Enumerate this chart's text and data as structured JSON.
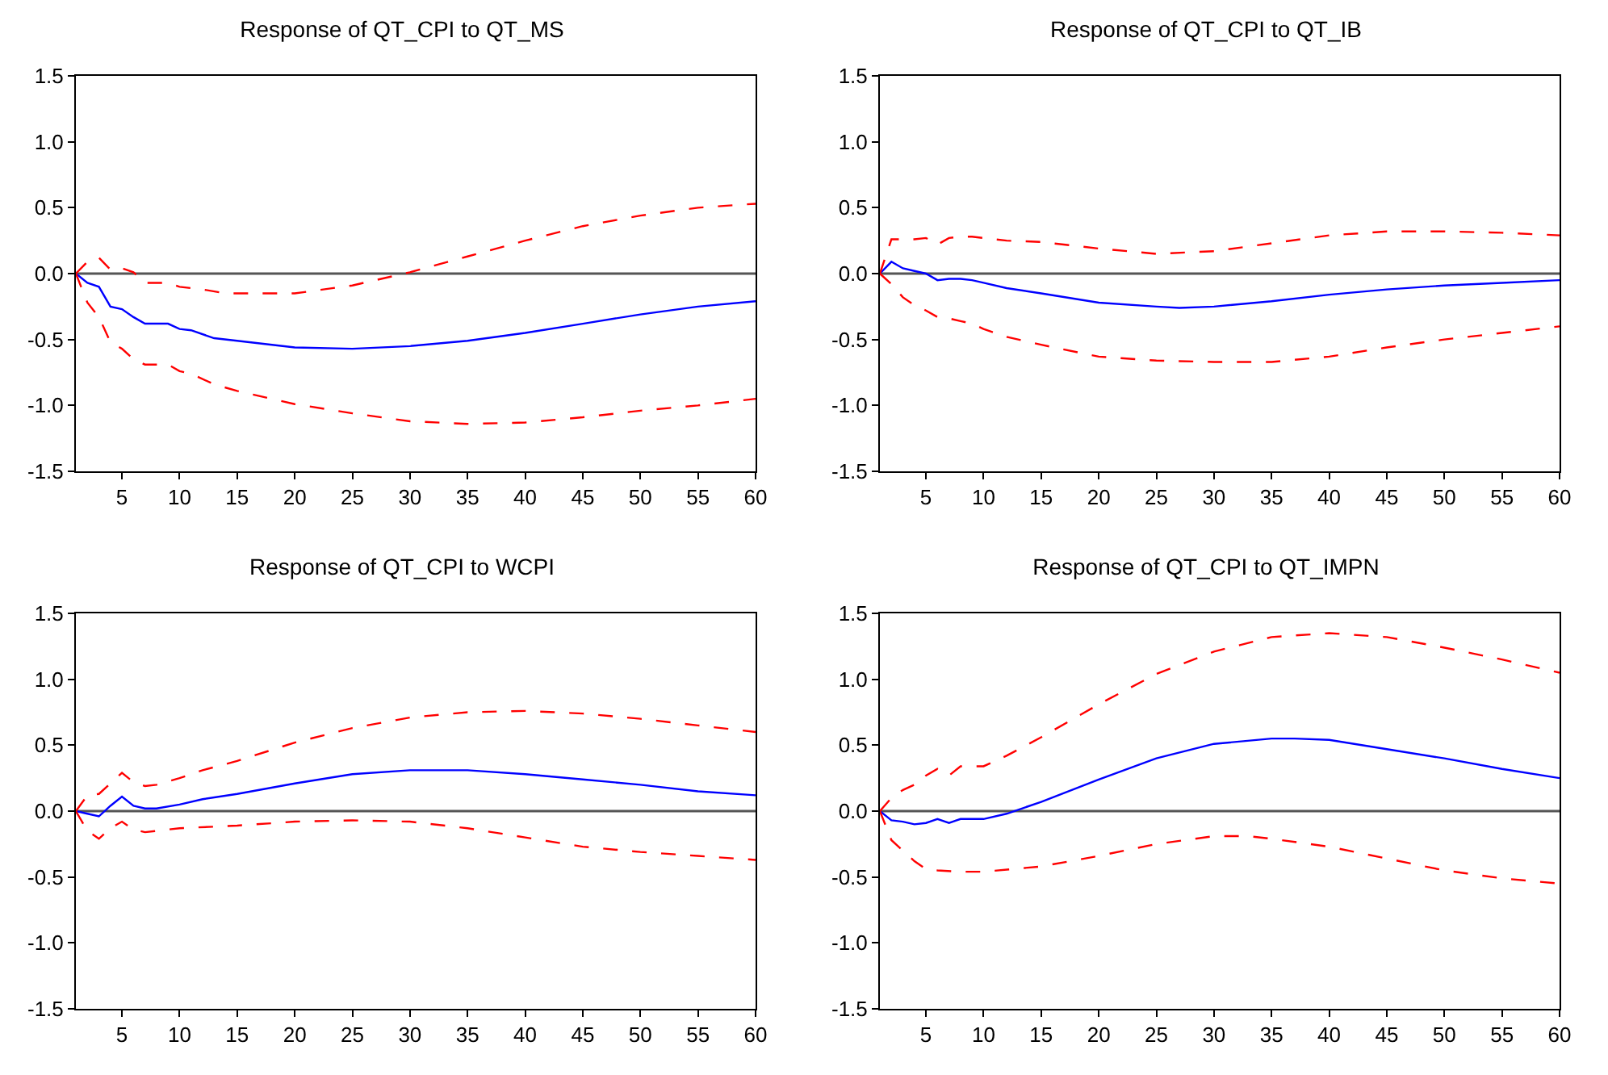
{
  "chart_data": [
    {
      "type": "line",
      "title": "Response of QT_CPI to QT_MS",
      "xlim": [
        1,
        60
      ],
      "xticks": [
        5,
        10,
        15,
        20,
        25,
        30,
        35,
        40,
        45,
        50,
        55,
        60
      ],
      "ylim": [
        -1.5,
        1.5
      ],
      "yticks": [
        {
          "value": 1.5,
          "label": "1.5"
        },
        {
          "value": 1,
          "label": "1.0"
        },
        {
          "value": 0.5,
          "label": "0.5"
        },
        {
          "value": 0,
          "label": "0.0"
        },
        {
          "value": -0.5,
          "label": "-0.5"
        },
        {
          "value": -1,
          "label": "-1.0"
        },
        {
          "value": -1.5,
          "label": "-1.5"
        }
      ],
      "ref_lines": [
        {
          "axis": "y",
          "value": 0,
          "color": "#555555"
        }
      ],
      "series": [
        {
          "color": "#0000ff",
          "line_style": "solid",
          "x": [
            1,
            2,
            3,
            4,
            5,
            6,
            7,
            8,
            9,
            10,
            11,
            13,
            15,
            20,
            25,
            30,
            35,
            40,
            45,
            50,
            55,
            60
          ],
          "values": [
            0,
            -0.07,
            -0.1,
            -0.25,
            -0.27,
            -0.33,
            -0.38,
            -0.38,
            -0.38,
            -0.42,
            -0.43,
            -0.49,
            -0.51,
            -0.56,
            -0.57,
            -0.55,
            -0.51,
            -0.45,
            -0.38,
            -0.31,
            -0.25,
            -0.21
          ]
        },
        {
          "color": "#ff0000",
          "line_style": "dashed",
          "x": [
            1,
            2,
            3,
            4,
            5,
            6,
            7,
            8,
            9,
            10,
            12,
            14,
            20,
            25,
            30,
            35,
            40,
            45,
            50,
            55,
            60
          ],
          "values": [
            0,
            0.09,
            0.12,
            0.03,
            0.04,
            0.01,
            -0.07,
            -0.07,
            -0.07,
            -0.1,
            -0.12,
            -0.15,
            -0.15,
            -0.09,
            0.01,
            0.13,
            0.25,
            0.36,
            0.44,
            0.5,
            0.53
          ]
        },
        {
          "color": "#ff0000",
          "line_style": "dashed",
          "x": [
            1,
            2,
            3,
            4,
            5,
            6,
            7,
            8,
            9,
            10,
            11,
            13,
            15,
            20,
            25,
            30,
            35,
            40,
            45,
            50,
            55,
            60
          ],
          "values": [
            0,
            -0.22,
            -0.33,
            -0.52,
            -0.57,
            -0.65,
            -0.69,
            -0.69,
            -0.69,
            -0.74,
            -0.76,
            -0.84,
            -0.89,
            -0.99,
            -1.06,
            -1.12,
            -1.14,
            -1.13,
            -1.09,
            -1.04,
            -1.0,
            -0.95
          ]
        }
      ]
    },
    {
      "type": "line",
      "title": "Response of QT_CPI to QT_IB",
      "xlim": [
        1,
        60
      ],
      "xticks": [
        5,
        10,
        15,
        20,
        25,
        30,
        35,
        40,
        45,
        50,
        55,
        60
      ],
      "ylim": [
        -1.5,
        1.5
      ],
      "yticks": [
        {
          "value": 1.5,
          "label": "1.5"
        },
        {
          "value": 1,
          "label": "1.0"
        },
        {
          "value": 0.5,
          "label": "0.5"
        },
        {
          "value": 0,
          "label": "0.0"
        },
        {
          "value": -0.5,
          "label": "-0.5"
        },
        {
          "value": -1,
          "label": "-1.0"
        },
        {
          "value": -1.5,
          "label": "-1.5"
        }
      ],
      "ref_lines": [
        {
          "axis": "y",
          "value": 0,
          "color": "#555555"
        }
      ],
      "series": [
        {
          "color": "#0000ff",
          "line_style": "solid",
          "x": [
            1,
            2,
            3,
            4,
            5,
            6,
            7,
            8,
            9,
            10,
            12,
            15,
            20,
            25,
            27,
            30,
            35,
            40,
            45,
            50,
            55,
            60
          ],
          "values": [
            0,
            0.09,
            0.04,
            0.02,
            0.0,
            -0.05,
            -0.04,
            -0.04,
            -0.05,
            -0.07,
            -0.11,
            -0.15,
            -0.22,
            -0.25,
            -0.26,
            -0.25,
            -0.21,
            -0.16,
            -0.12,
            -0.09,
            -0.07,
            -0.05
          ]
        },
        {
          "color": "#ff0000",
          "line_style": "dashed",
          "x": [
            1,
            2,
            3,
            4,
            5,
            6,
            7,
            8,
            9,
            10,
            12,
            15,
            20,
            25,
            30,
            35,
            40,
            45,
            50,
            55,
            60
          ],
          "values": [
            0,
            0.26,
            0.26,
            0.26,
            0.27,
            0.22,
            0.27,
            0.28,
            0.28,
            0.27,
            0.25,
            0.24,
            0.19,
            0.15,
            0.17,
            0.23,
            0.29,
            0.32,
            0.32,
            0.31,
            0.29
          ]
        },
        {
          "color": "#ff0000",
          "line_style": "dashed",
          "x": [
            1,
            2,
            3,
            4,
            5,
            6,
            7,
            8,
            9,
            10,
            12,
            15,
            20,
            25,
            30,
            35,
            40,
            45,
            50,
            55,
            60
          ],
          "values": [
            0,
            -0.08,
            -0.18,
            -0.24,
            -0.28,
            -0.33,
            -0.34,
            -0.36,
            -0.38,
            -0.42,
            -0.48,
            -0.54,
            -0.63,
            -0.66,
            -0.67,
            -0.67,
            -0.63,
            -0.56,
            -0.5,
            -0.45,
            -0.4
          ]
        }
      ]
    },
    {
      "type": "line",
      "title": "Response of QT_CPI to WCPI",
      "xlim": [
        1,
        60
      ],
      "xticks": [
        5,
        10,
        15,
        20,
        25,
        30,
        35,
        40,
        45,
        50,
        55,
        60
      ],
      "ylim": [
        -1.5,
        1.5
      ],
      "yticks": [
        {
          "value": 1.5,
          "label": "1.5"
        },
        {
          "value": 1,
          "label": "1.0"
        },
        {
          "value": 0.5,
          "label": "0.5"
        },
        {
          "value": 0,
          "label": "0.0"
        },
        {
          "value": -0.5,
          "label": "-0.5"
        },
        {
          "value": -1,
          "label": "-1.0"
        },
        {
          "value": -1.5,
          "label": "-1.5"
        }
      ],
      "ref_lines": [
        {
          "axis": "y",
          "value": 0,
          "color": "#555555"
        }
      ],
      "series": [
        {
          "color": "#0000ff",
          "line_style": "solid",
          "x": [
            1,
            2,
            3,
            4,
            5,
            6,
            7,
            8,
            10,
            12,
            15,
            20,
            25,
            30,
            33,
            35,
            40,
            45,
            50,
            55,
            60
          ],
          "values": [
            0,
            -0.02,
            -0.04,
            0.04,
            0.11,
            0.04,
            0.02,
            0.02,
            0.05,
            0.09,
            0.13,
            0.21,
            0.28,
            0.31,
            0.31,
            0.31,
            0.28,
            0.24,
            0.2,
            0.15,
            0.12
          ]
        },
        {
          "color": "#ff0000",
          "line_style": "dashed",
          "x": [
            1,
            2,
            3,
            4,
            5,
            6,
            7,
            8,
            10,
            12,
            15,
            20,
            25,
            30,
            35,
            40,
            45,
            50,
            55,
            60
          ],
          "values": [
            0,
            0.12,
            0.13,
            0.21,
            0.29,
            0.22,
            0.19,
            0.2,
            0.25,
            0.31,
            0.38,
            0.52,
            0.63,
            0.71,
            0.75,
            0.76,
            0.74,
            0.7,
            0.65,
            0.6
          ]
        },
        {
          "color": "#ff0000",
          "line_style": "dashed",
          "x": [
            1,
            2,
            3,
            4,
            5,
            6,
            7,
            8,
            10,
            15,
            20,
            25,
            30,
            35,
            40,
            45,
            50,
            55,
            60
          ],
          "values": [
            0,
            -0.15,
            -0.21,
            -0.13,
            -0.08,
            -0.14,
            -0.16,
            -0.15,
            -0.13,
            -0.11,
            -0.08,
            -0.07,
            -0.08,
            -0.13,
            -0.2,
            -0.27,
            -0.31,
            -0.34,
            -0.37
          ]
        }
      ]
    },
    {
      "type": "line",
      "title": "Response of QT_CPI to QT_IMPN",
      "xlim": [
        1,
        60
      ],
      "xticks": [
        5,
        10,
        15,
        20,
        25,
        30,
        35,
        40,
        45,
        50,
        55,
        60
      ],
      "ylim": [
        -1.5,
        1.5
      ],
      "yticks": [
        {
          "value": 1.5,
          "label": "1.5"
        },
        {
          "value": 1,
          "label": "1.0"
        },
        {
          "value": 0.5,
          "label": "0.5"
        },
        {
          "value": 0,
          "label": "0.0"
        },
        {
          "value": -0.5,
          "label": "-0.5"
        },
        {
          "value": -1,
          "label": "-1.0"
        },
        {
          "value": -1.5,
          "label": "-1.5"
        }
      ],
      "ref_lines": [
        {
          "axis": "y",
          "value": 0,
          "color": "#555555"
        }
      ],
      "series": [
        {
          "color": "#0000ff",
          "line_style": "solid",
          "x": [
            1,
            2,
            3,
            4,
            5,
            6,
            7,
            8,
            10,
            12,
            15,
            20,
            25,
            30,
            35,
            37,
            40,
            45,
            50,
            55,
            60
          ],
          "values": [
            0,
            -0.07,
            -0.08,
            -0.1,
            -0.09,
            -0.06,
            -0.09,
            -0.06,
            -0.06,
            -0.02,
            0.07,
            0.24,
            0.4,
            0.51,
            0.55,
            0.55,
            0.54,
            0.47,
            0.4,
            0.32,
            0.25
          ]
        },
        {
          "color": "#ff0000",
          "line_style": "dashed",
          "x": [
            1,
            2,
            3,
            4,
            5,
            6,
            7,
            8,
            10,
            12,
            15,
            20,
            25,
            30,
            35,
            40,
            45,
            50,
            55,
            60
          ],
          "values": [
            0,
            0.1,
            0.16,
            0.2,
            0.27,
            0.32,
            0.27,
            0.34,
            0.34,
            0.42,
            0.56,
            0.81,
            1.04,
            1.21,
            1.32,
            1.35,
            1.32,
            1.24,
            1.15,
            1.05
          ]
        },
        {
          "color": "#ff0000",
          "line_style": "dashed",
          "x": [
            1,
            2,
            3,
            4,
            5,
            6,
            8,
            10,
            15,
            20,
            25,
            30,
            33,
            35,
            40,
            45,
            50,
            55,
            60
          ],
          "values": [
            0,
            -0.22,
            -0.3,
            -0.38,
            -0.44,
            -0.45,
            -0.46,
            -0.46,
            -0.42,
            -0.34,
            -0.25,
            -0.19,
            -0.19,
            -0.21,
            -0.27,
            -0.36,
            -0.45,
            -0.51,
            -0.55
          ]
        }
      ]
    }
  ]
}
